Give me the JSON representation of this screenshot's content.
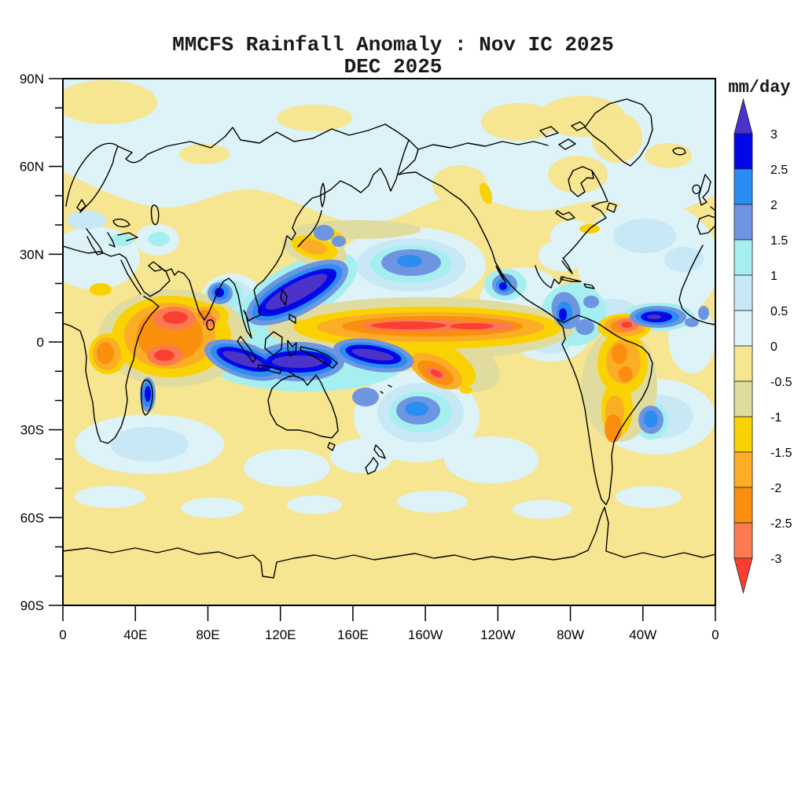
{
  "figure": {
    "title_line1": "MMCFS Rainfall Anomaly : Nov IC 2025",
    "title_line2": "DEC 2025"
  },
  "chart_data": {
    "type": "heatmap",
    "title": "MMCFS Rainfall Anomaly : Nov IC 2025",
    "subtitle": "DEC 2025",
    "units": "mm/day",
    "x_axis": {
      "tick_labels": [
        "0",
        "40E",
        "80E",
        "120E",
        "160E",
        "160W",
        "120W",
        "80W",
        "40W",
        "0"
      ]
    },
    "y_axis": {
      "tick_labels": [
        "90N",
        "60N",
        "30N",
        "0",
        "30S",
        "60S",
        "90S"
      ]
    },
    "colorbar": {
      "label": "mm/day",
      "tick_labels": [
        "3",
        "2.5",
        "2",
        "1.5",
        "1",
        "0.5",
        "0",
        "-0.5",
        "-1",
        "-1.5",
        "-2",
        "-2.5",
        "-3"
      ],
      "segments": [
        "p3",
        "p25",
        "p2",
        "p15",
        "p1",
        "p05",
        "n05",
        "n1",
        "n15",
        "n2",
        "n25",
        "n3"
      ],
      "over_color": "gt3",
      "under_color": "lt3",
      "palette": {
        "gt3": "#4b32c8",
        "p3": "#0207e8",
        "p25": "#2b8cf2",
        "p2": "#6e96e0",
        "p15": "#a5eff0",
        "p1": "#c9e8f6",
        "p05": "#ddf3f8",
        "n05": "#f6e591",
        "n1": "#e0db9e",
        "n15": "#fad201",
        "n2": "#fbad25",
        "n25": "#fa8f0e",
        "n3": "#fa7b50",
        "lt3": "#f93f32"
      }
    },
    "features": [
      {
        "region": "equatorial central Pacific band (~150E-110W, ~5N)",
        "anomaly_mm_day": -3,
        "description": "strong dry band with red core"
      },
      {
        "region": "South Pacific convergence zone (~165E-160W, 5-15S)",
        "anomaly_mm_day": -3,
        "description": "dry blob southeast of band"
      },
      {
        "region": "Maritime Continent / west Pacific (95E-190E, 0-15S)",
        "anomaly_mm_day": 3,
        "description": "strong wet band, exceeds +3"
      },
      {
        "region": "South China Sea / Philippine Sea (110E-150E, 8-27N)",
        "anomaly_mm_day": 3,
        "description": "strong wet, exceeds +3"
      },
      {
        "region": "western Indian Ocean (45-90E, 5N-20S)",
        "anomaly_mm_day": -3,
        "description": "strong dry with red cores"
      },
      {
        "region": "Bay of Bengal (~82-90E, 13-20N)",
        "anomaly_mm_day": 2.5,
        "description": "wet blob"
      },
      {
        "region": "Madagascar",
        "anomaly_mm_day": 2.5,
        "description": "wet strip"
      },
      {
        "region": "tropical Atlantic off NE South America (35-20W, ~8N)",
        "anomaly_mm_day": 3,
        "description": "wet blob"
      },
      {
        "region": "NE Brazil coast / Guianas",
        "anomaly_mm_day": -3,
        "description": "dry core"
      },
      {
        "region": "interior Brazil",
        "anomaly_mm_day": -2,
        "description": "dry region"
      },
      {
        "region": "Caribbean and Colombia",
        "anomaly_mm_day": 2,
        "description": "scattered wet blobs"
      },
      {
        "region": "central North Pacific near Hawaii (~30N)",
        "anomaly_mm_day": 2,
        "description": "wet blob"
      },
      {
        "region": "South Pacific ~20-25S, 175E-160W",
        "anomaly_mm_day": 2,
        "description": "wet blob"
      },
      {
        "region": "northern high latitudes (50N-90N)",
        "anomaly_mm_day": 0.3,
        "description": "weak wet with scattered weak dry patches"
      },
      {
        "region": "subtropics and southern mid-latitudes",
        "anomaly_mm_day": -0.3,
        "description": "weak dry background"
      }
    ]
  }
}
